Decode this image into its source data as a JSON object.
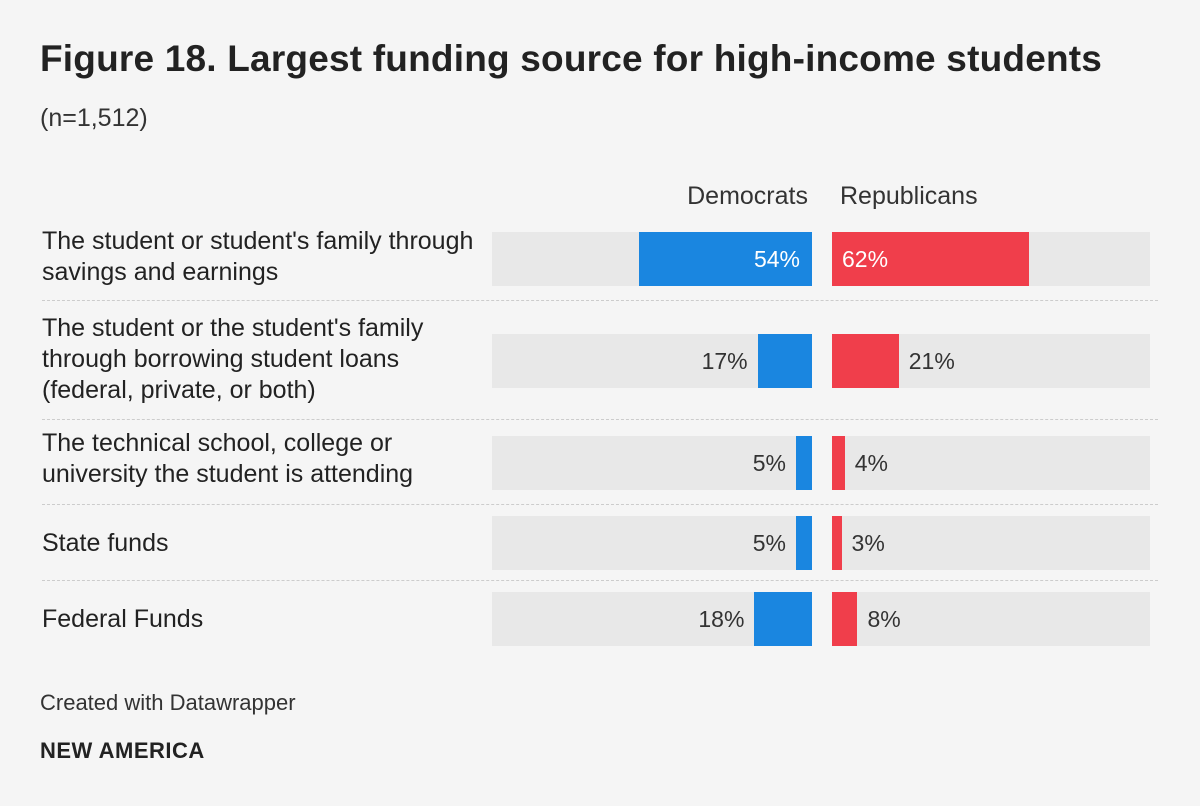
{
  "header": {
    "title": "Figure 18. Largest funding source for high-income students",
    "subtitle": "(n=1,512)"
  },
  "chart_data": {
    "type": "bar",
    "orientation": "horizontal",
    "title": "Figure 18. Largest funding source for high-income students",
    "subtitle": "(n=1,512)",
    "unit": "%",
    "xlim": [
      0,
      100
    ],
    "categories": [
      "The student or student's family through savings and earnings",
      "The student or the student's family through borrowing student loans (federal, private, or both)",
      "The technical school, college or university the student is attending",
      "State funds",
      "Federal Funds"
    ],
    "series": [
      {
        "name": "Democrats",
        "values": [
          54,
          17,
          5,
          5,
          18
        ],
        "labels": [
          "54%",
          "17%",
          "5%",
          "5%",
          "18%"
        ],
        "color": "#1a86e0"
      },
      {
        "name": "Republicans",
        "values": [
          62,
          21,
          4,
          3,
          8
        ],
        "labels": [
          "62%",
          "21%",
          "4%",
          "3%",
          "8%"
        ],
        "color": "#f03e4b"
      }
    ]
  },
  "footer": {
    "credit": "Created with Datawrapper",
    "brand": "NEW AMERICA"
  },
  "colors": {
    "background": "#f5f5f5",
    "track": "#e8e8e8",
    "democrats": "#1a86e0",
    "republicans": "#f03e4b"
  }
}
